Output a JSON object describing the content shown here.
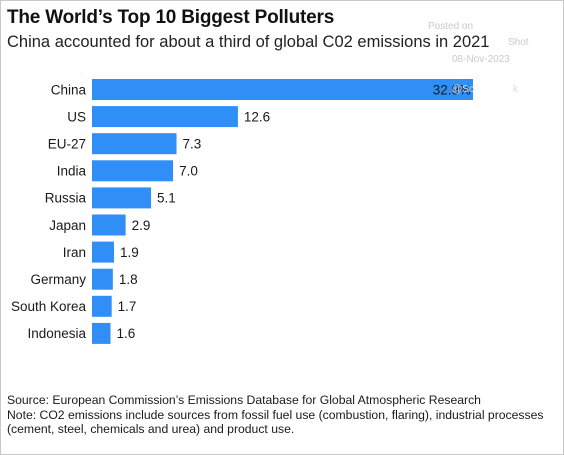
{
  "title": "The World’s Top 10 Biggest Polluters",
  "subtitle": "China accounted for about a third of global C02 emissions in 2021",
  "watermark": {
    "posted_on": "Posted on",
    "source_name": "Shot",
    "date": "08-Nov-2023",
    "handle": "@So",
    "handle_tail": "k"
  },
  "chart_data": {
    "type": "bar",
    "orientation": "horizontal",
    "categories": [
      "China",
      "US",
      "EU-27",
      "India",
      "Russia",
      "Japan",
      "Iran",
      "Germany",
      "South Korea",
      "Indonesia"
    ],
    "values": [
      32.9,
      12.6,
      7.3,
      7.0,
      5.1,
      2.9,
      1.9,
      1.8,
      1.7,
      1.6
    ],
    "value_labels": [
      "32.9%",
      "12.6",
      "7.3",
      "7.0",
      "5.1",
      "2.9",
      "1.9",
      "1.8",
      "1.7",
      "1.6"
    ],
    "xlim": [
      0,
      32.9
    ],
    "bar_color": "#2f8ff7",
    "grid": false
  },
  "notes": {
    "source": "Source: European Commission’s Emissions Database for Global Atmospheric Research",
    "note": "Note: CO2 emissions include sources from fossil fuel use (combustion, flaring), industrial processes (cement, steel, chemicals and urea) and product use."
  }
}
